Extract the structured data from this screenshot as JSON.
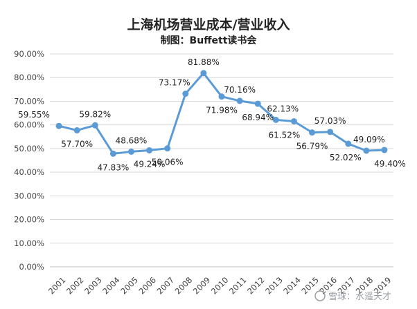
{
  "chart_data": {
    "type": "line",
    "title": "上海机场营业成本/营业收入",
    "subtitle": "制图：Buffett读书会",
    "categories": [
      "2001",
      "2002",
      "2003",
      "2004",
      "2005",
      "2006",
      "2007",
      "2008",
      "2009",
      "2010",
      "2011",
      "2012",
      "2013",
      "2014",
      "2015",
      "2016",
      "2017",
      "2018",
      "2019"
    ],
    "series": [
      {
        "values": [
          59.55,
          57.7,
          59.82,
          47.83,
          48.68,
          49.24,
          50.06,
          73.17,
          81.88,
          71.98,
          70.16,
          68.94,
          62.13,
          61.52,
          56.79,
          57.03,
          52.02,
          49.09,
          49.4
        ],
        "labels": [
          "59.55%",
          "57.70%",
          "59.82%",
          "47.83%",
          "48.68%",
          "49.24%",
          "50.06%",
          "73.17%",
          "81.88%",
          "71.98%",
          "70.16%",
          "68.94%",
          "62.13%",
          "61.52%",
          "56.79%",
          "57.03%",
          "52.02%",
          "49.09%",
          "49.40%"
        ],
        "color": "#5b9bd5"
      }
    ],
    "y_ticks": [
      "0.00%",
      "10.00%",
      "20.00%",
      "30.00%",
      "40.00%",
      "50.00%",
      "60.00%",
      "70.00%",
      "80.00%",
      "90.00%"
    ],
    "ylim": [
      0,
      90
    ],
    "grid": true,
    "legend": "none"
  },
  "watermark": {
    "text": "雪球：水遥天才"
  }
}
